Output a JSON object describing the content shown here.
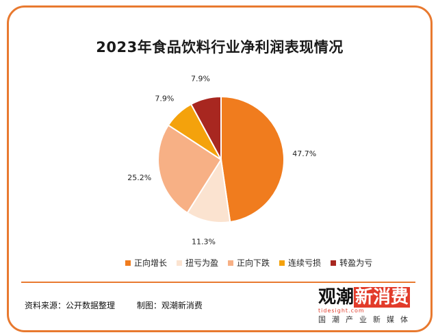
{
  "chart_data": {
    "type": "pie",
    "title": "2023年食品饮料行业净利润表现情况",
    "slices": [
      {
        "name": "正向增长",
        "value": 47.7,
        "label": "47.7%",
        "color": "#f07c1e"
      },
      {
        "name": "扭亏为盈",
        "value": 11.3,
        "label": "11.3%",
        "color": "#fbe3d0"
      },
      {
        "name": "正向下跌",
        "value": 25.2,
        "label": "25.2%",
        "color": "#f7b085"
      },
      {
        "name": "连续亏损",
        "value": 7.9,
        "label": "7.9%",
        "color": "#f4a20c"
      },
      {
        "name": "转盈为亏",
        "value": 7.9,
        "label": "7.9%",
        "color": "#a82720"
      }
    ],
    "legend_position": "bottom"
  },
  "footer": {
    "source": "资料来源：公开数据整理",
    "maker": "制图：观潮新消费"
  },
  "logo": {
    "main_a": "观潮",
    "main_b": "新消费",
    "url": "tidesight.com",
    "sub": "国潮产业新媒体"
  }
}
